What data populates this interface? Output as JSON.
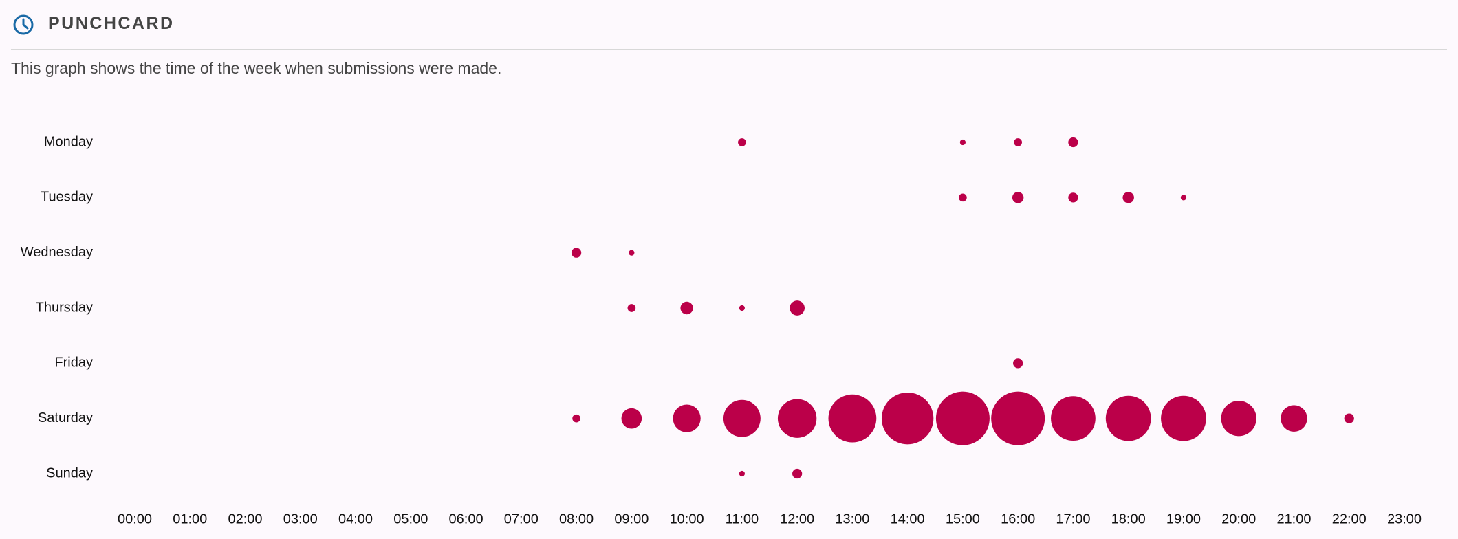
{
  "header": {
    "title": "PUNCHCARD",
    "description": "This graph shows the time of the week when submissions were made."
  },
  "chart_data": {
    "type": "punchcard",
    "color": "#bb0049",
    "rows": [
      "Monday",
      "Tuesday",
      "Wednesday",
      "Thursday",
      "Friday",
      "Saturday",
      "Sunday"
    ],
    "columns": [
      "00:00",
      "01:00",
      "02:00",
      "03:00",
      "04:00",
      "05:00",
      "06:00",
      "07:00",
      "08:00",
      "09:00",
      "10:00",
      "11:00",
      "12:00",
      "13:00",
      "14:00",
      "15:00",
      "16:00",
      "17:00",
      "18:00",
      "19:00",
      "20:00",
      "21:00",
      "22:00",
      "23:00"
    ],
    "values": [
      [
        null,
        null,
        null,
        null,
        null,
        null,
        null,
        null,
        null,
        null,
        null,
        2,
        null,
        null,
        null,
        1,
        2,
        3,
        null,
        null,
        null,
        null,
        null,
        null
      ],
      [
        null,
        null,
        null,
        null,
        null,
        null,
        null,
        null,
        null,
        null,
        null,
        null,
        null,
        null,
        null,
        2,
        4,
        3,
        4,
        1,
        null,
        null,
        null,
        null
      ],
      [
        null,
        null,
        null,
        null,
        null,
        null,
        null,
        null,
        3,
        1,
        null,
        null,
        null,
        null,
        null,
        null,
        null,
        null,
        null,
        null,
        null,
        null,
        null,
        null
      ],
      [
        null,
        null,
        null,
        null,
        null,
        null,
        null,
        null,
        null,
        2,
        5,
        1,
        7,
        null,
        null,
        null,
        null,
        null,
        null,
        null,
        null,
        null,
        null,
        null
      ],
      [
        null,
        null,
        null,
        null,
        null,
        null,
        null,
        null,
        null,
        null,
        null,
        null,
        null,
        null,
        null,
        null,
        3,
        null,
        null,
        null,
        null,
        null,
        null,
        null
      ],
      [
        null,
        null,
        null,
        null,
        null,
        null,
        null,
        null,
        2,
        13,
        24,
        43,
        47,
        72,
        84,
        90,
        90,
        62,
        64,
        64,
        39,
        22,
        3,
        null
      ],
      [
        null,
        null,
        null,
        null,
        null,
        null,
        null,
        null,
        null,
        null,
        null,
        1,
        3,
        null,
        null,
        null,
        null,
        null,
        null,
        null,
        null,
        null,
        null,
        null
      ]
    ]
  }
}
